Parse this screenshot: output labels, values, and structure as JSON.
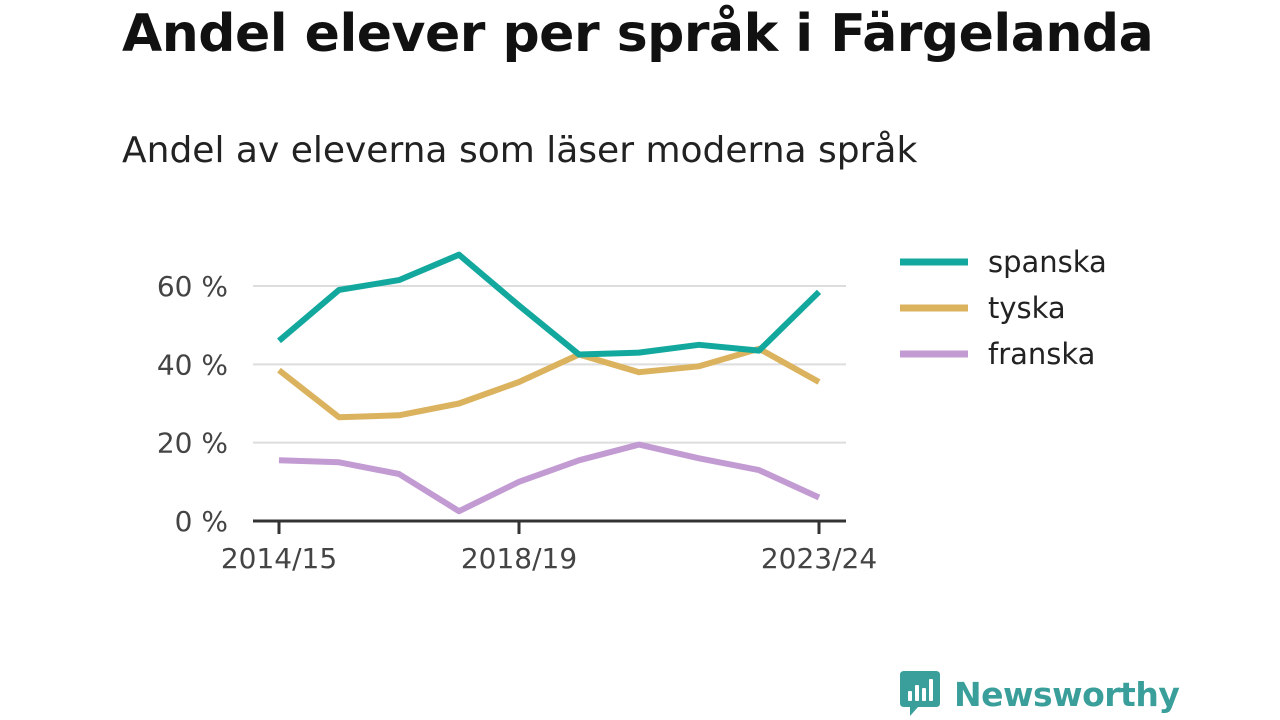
{
  "header": {
    "title": "Andel elever per språk i Färgelanda",
    "subtitle": "Andel av eleverna som läser moderna språk"
  },
  "brand": {
    "name": "Newsworthy",
    "color": "#3a9f9a"
  },
  "chart_data": {
    "type": "line",
    "title": "Andel elever per språk i Färgelanda",
    "subtitle": "Andel av eleverna som läser moderna språk",
    "xlabel": "",
    "ylabel": "",
    "x": [
      "2014/15",
      "2015/16",
      "2016/17",
      "2017/18",
      "2018/19",
      "2019/20",
      "2020/21",
      "2021/22",
      "2022/23",
      "2023/24"
    ],
    "x_tick_labels": [
      "2014/15",
      "2018/19",
      "2023/24"
    ],
    "ylim": [
      0,
      70
    ],
    "y_ticks": [
      0,
      20,
      40,
      60
    ],
    "y_tick_labels": [
      "0 %",
      "20 %",
      "40 %",
      "60 %"
    ],
    "grid": true,
    "legend_position": "right",
    "series": [
      {
        "name": "spanska",
        "color": "#13a89e",
        "values": [
          46,
          59,
          61.5,
          68,
          55,
          42.5,
          43,
          45,
          43.5,
          58.5
        ]
      },
      {
        "name": "tyska",
        "color": "#dbb35f",
        "values": [
          38.5,
          26.5,
          27,
          30,
          35.5,
          42.5,
          38,
          39.5,
          44,
          35.5
        ]
      },
      {
        "name": "franska",
        "color": "#c39bd3",
        "values": [
          15.5,
          15,
          12,
          2.5,
          10,
          15.5,
          19.5,
          16,
          13,
          6
        ]
      }
    ]
  }
}
